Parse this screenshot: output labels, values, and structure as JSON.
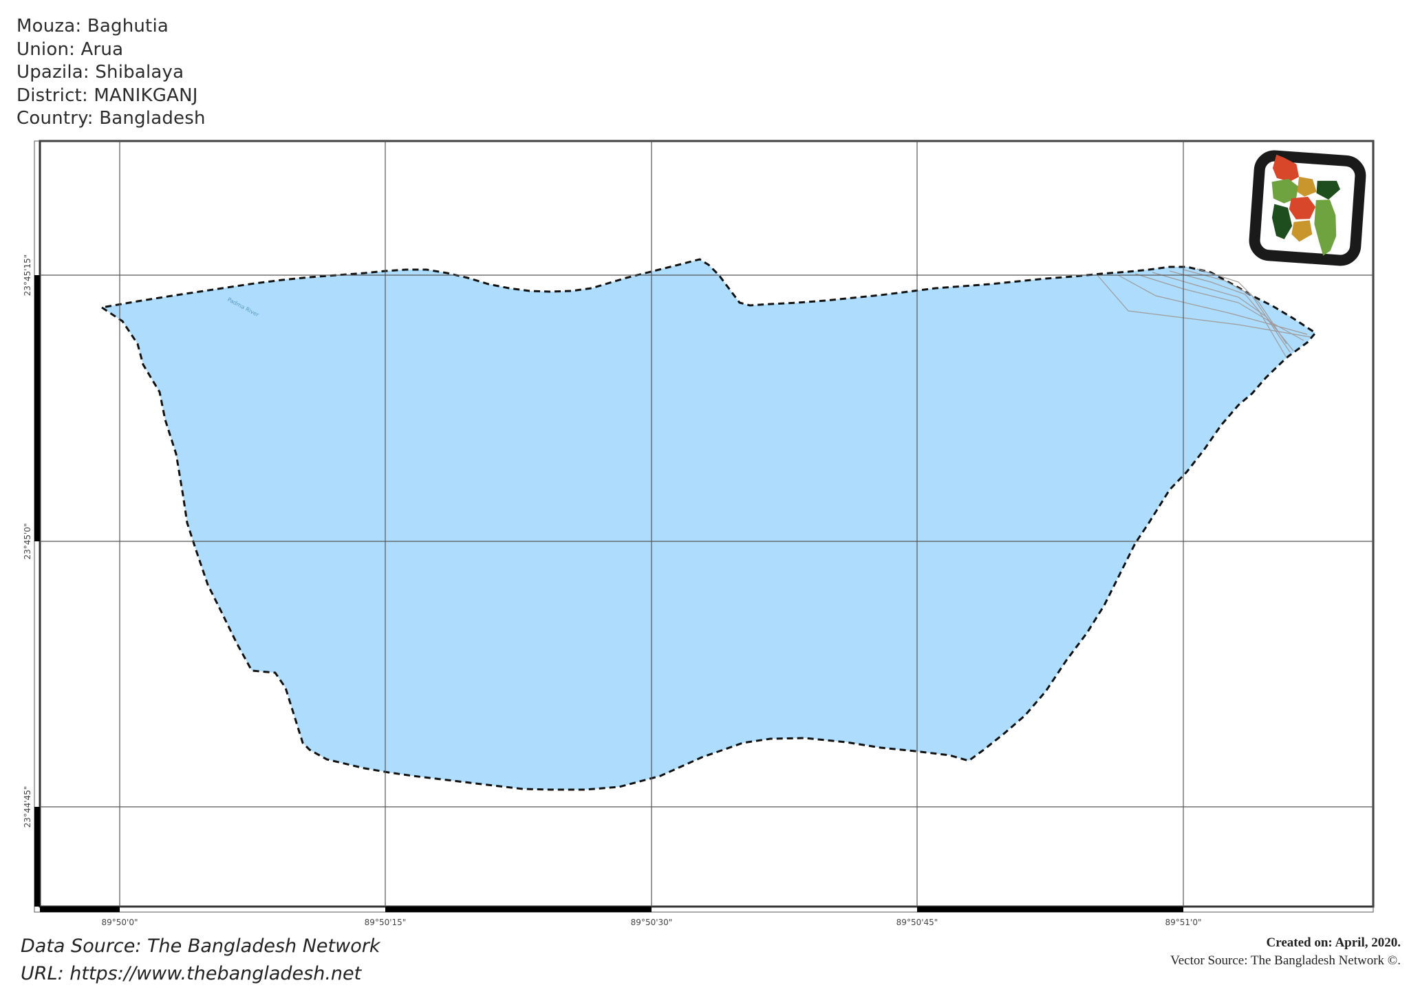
{
  "info": {
    "mouza": "Mouza: Baghutia",
    "union": "Union: Arua",
    "upazila": "Upazila: Shibalaya",
    "district": "District: MANIKGANJ",
    "country": "Country: Bangladesh"
  },
  "map": {
    "river_label": "Padma River",
    "water_color": "#addcfd",
    "boundary_color": "#111111",
    "longitude_ticks": [
      "89°50'0\"",
      "89°50'15\"",
      "89°50'30\"",
      "89°50'45\"",
      "89°51'0\""
    ],
    "latitude_ticks": [
      "23°45'15\"",
      "23°45'0\"",
      "23°44'45\""
    ]
  },
  "inset": {
    "label": "Bangladesh locator map",
    "colors": [
      "#d9472b",
      "#6ea33f",
      "#c9962e",
      "#1e4d1e"
    ]
  },
  "footer": {
    "data_source": "Data Source: The Bangladesh Network",
    "url": "URL: https://www.thebangladesh.net",
    "created": "Created on: April, 2020.",
    "vector_source": "Vector Source: The Bangladesh Network ©."
  }
}
